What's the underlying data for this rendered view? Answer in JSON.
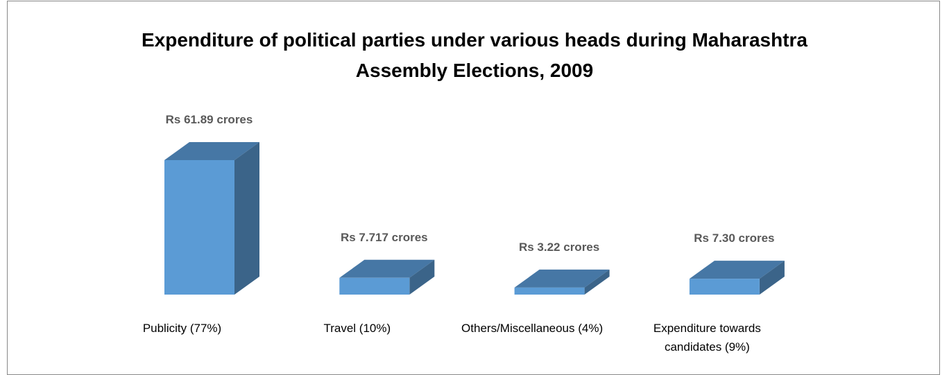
{
  "chart_data": {
    "type": "bar3d",
    "title": "Expenditure of political parties under various heads during Maharashtra Assembly Elections, 2009",
    "categories": [
      "Publicity (77%)",
      "Travel (10%)",
      "Others/Miscellaneous (4%)",
      "Expenditure towards candidates (9%)"
    ],
    "values": [
      61.89,
      7.717,
      3.22,
      7.3
    ],
    "value_labels": [
      "Rs 61.89 crores",
      "Rs 7.717 crores",
      "Rs 3.22 crores",
      "Rs 7.30 crores"
    ],
    "color": "#5b9bd5"
  }
}
